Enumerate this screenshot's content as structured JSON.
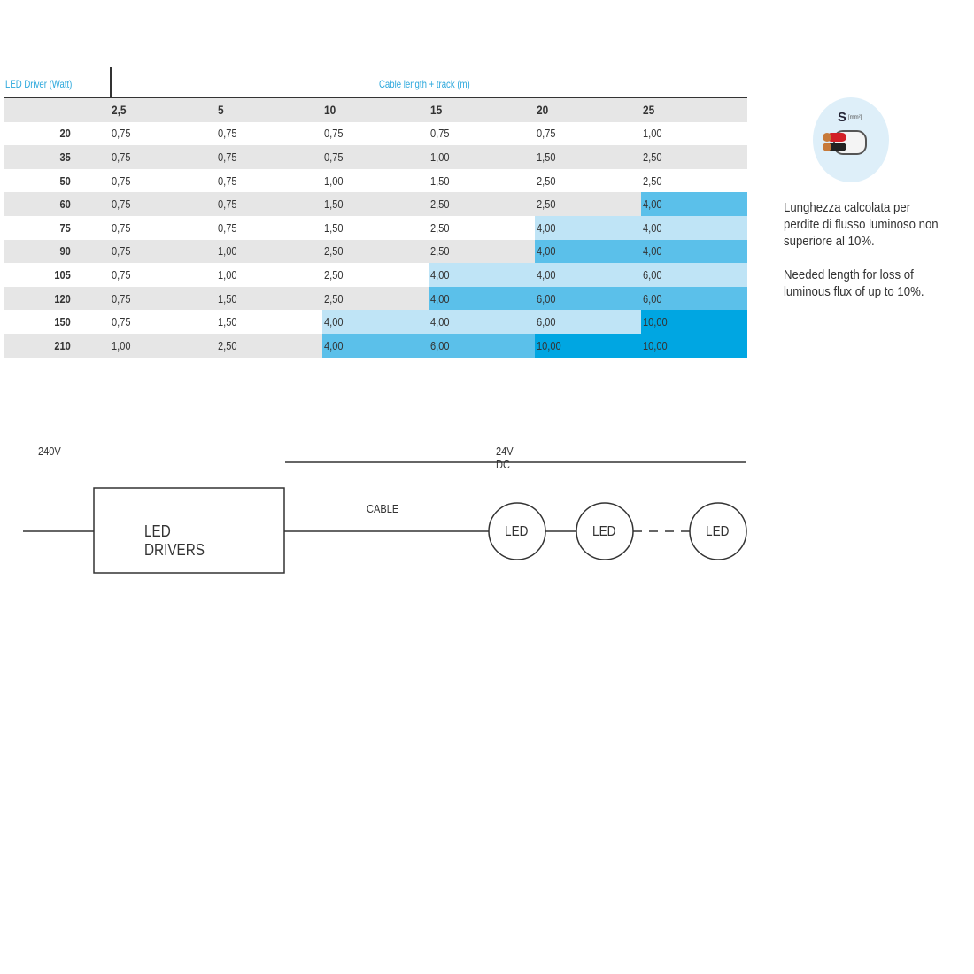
{
  "table": {
    "row_header_label": "LED Driver (Watt)",
    "column_group_label": "Cable length + track (m)",
    "columns": [
      "2,5",
      "5",
      "10",
      "15",
      "20",
      "25"
    ],
    "rows": [
      {
        "watt": "20",
        "values": [
          "0,75",
          "0,75",
          "0,75",
          "0,75",
          "0,75",
          "1,00"
        ]
      },
      {
        "watt": "35",
        "values": [
          "0,75",
          "0,75",
          "0,75",
          "1,00",
          "1,50",
          "2,50"
        ]
      },
      {
        "watt": "50",
        "values": [
          "0,75",
          "0,75",
          "1,00",
          "1,50",
          "2,50",
          "2,50"
        ]
      },
      {
        "watt": "60",
        "values": [
          "0,75",
          "0,75",
          "1,50",
          "2,50",
          "2,50",
          "4,00"
        ]
      },
      {
        "watt": "75",
        "values": [
          "0,75",
          "0,75",
          "1,50",
          "2,50",
          "4,00",
          "4,00"
        ]
      },
      {
        "watt": "90",
        "values": [
          "0,75",
          "1,00",
          "2,50",
          "2,50",
          "4,00",
          "4,00"
        ]
      },
      {
        "watt": "105",
        "values": [
          "0,75",
          "1,00",
          "2,50",
          "4,00",
          "4,00",
          "6,00"
        ]
      },
      {
        "watt": "120",
        "values": [
          "0,75",
          "1,50",
          "2,50",
          "4,00",
          "6,00",
          "6,00"
        ]
      },
      {
        "watt": "150",
        "values": [
          "0,75",
          "1,50",
          "4,00",
          "4,00",
          "6,00",
          "10,00"
        ]
      },
      {
        "watt": "210",
        "values": [
          "1,00",
          "2,50",
          "4,00",
          "6,00",
          "10,00",
          "10,00"
        ]
      }
    ],
    "colors": {
      "label": "#2aa7dc",
      "stripe": "#e6e6e6",
      "light_blue": "#bfe4f6",
      "mid_blue": "#5bc0ea",
      "dark_blue": "#00a6e2"
    }
  },
  "icon": {
    "name": "cable-cross-section-icon",
    "symbol": "S",
    "unit": "[mm²]"
  },
  "notes": {
    "italian": "Lunghezza calcolata per perdite di flusso luminoso non superiore al 10%.",
    "english": "Needed length for loss of luminous flux of up to 10%."
  },
  "diagram": {
    "input_voltage": "240V",
    "output_voltage": "24V DC",
    "driver_label": "LED DRIVERS",
    "cable_label": "CABLE",
    "led_labels": [
      "LED",
      "LED",
      "LED"
    ]
  }
}
